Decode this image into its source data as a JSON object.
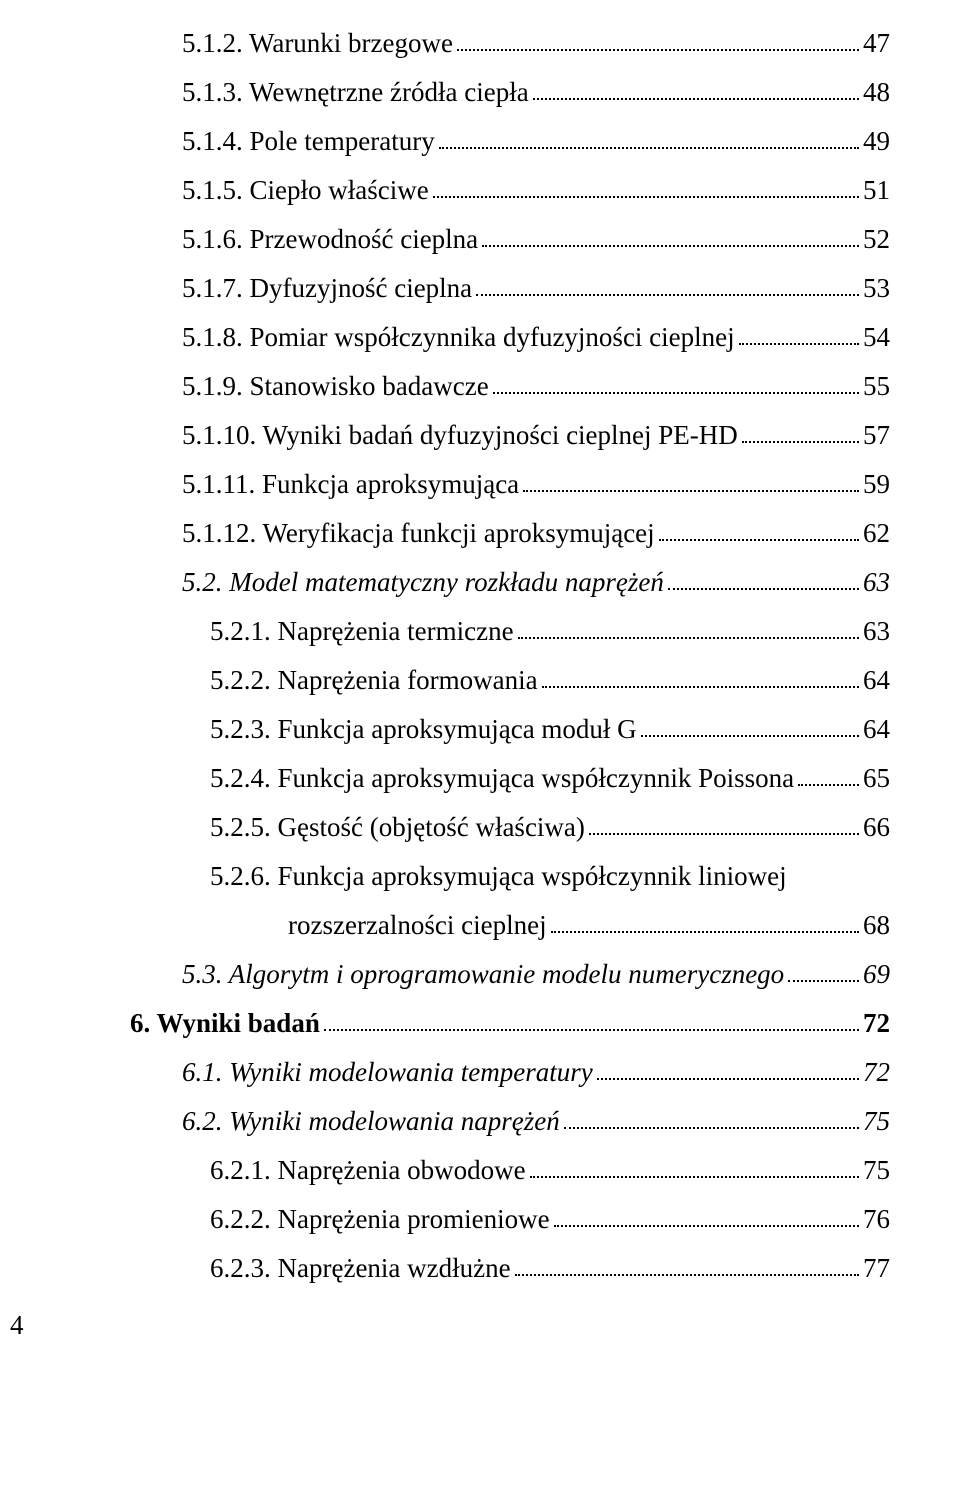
{
  "toc": {
    "entries": [
      {
        "indent": 1,
        "label": "5.1.2. Warunki brzegowe",
        "page": "47",
        "style": ""
      },
      {
        "indent": 1,
        "label": "5.1.3. Wewnętrzne źródła ciepła",
        "page": "48",
        "style": ""
      },
      {
        "indent": 1,
        "label": "5.1.4. Pole temperatury",
        "page": "49",
        "style": ""
      },
      {
        "indent": 1,
        "label": "5.1.5. Ciepło właściwe",
        "page": "51",
        "style": ""
      },
      {
        "indent": 1,
        "label": "5.1.6. Przewodność cieplna",
        "page": "52",
        "style": ""
      },
      {
        "indent": 1,
        "label": "5.1.7. Dyfuzyjność cieplna",
        "page": "53",
        "style": ""
      },
      {
        "indent": 1,
        "label": "5.1.8. Pomiar współczynnika dyfuzyjności cieplnej",
        "page": "54",
        "style": ""
      },
      {
        "indent": 1,
        "label": "5.1.9. Stanowisko badawcze",
        "page": "55",
        "style": ""
      },
      {
        "indent": 1,
        "label": "5.1.10. Wyniki badań dyfuzyjności cieplnej PE-HD",
        "page": "57",
        "style": ""
      },
      {
        "indent": 1,
        "label": "5.1.11. Funkcja aproksymująca",
        "page": "59",
        "style": ""
      },
      {
        "indent": 1,
        "label": "5.1.12. Weryfikacja funkcji aproksymującej",
        "page": "62",
        "style": ""
      },
      {
        "indent": 1,
        "label": "5.2. Model matematyczny rozkładu naprężeń",
        "page": "63",
        "style": "italic"
      },
      {
        "indent": 2,
        "label": "5.2.1. Naprężenia termiczne",
        "page": "63",
        "style": ""
      },
      {
        "indent": 2,
        "label": "5.2.2. Naprężenia formowania",
        "page": "64",
        "style": ""
      },
      {
        "indent": 2,
        "label": "5.2.3. Funkcja aproksymująca moduł G",
        "page": "64",
        "style": ""
      },
      {
        "indent": 2,
        "label": "5.2.4. Funkcja aproksymująca współczynnik Poissona",
        "page": "65",
        "style": ""
      },
      {
        "indent": 2,
        "label": "5.2.5. Gęstość (objętość właściwa)",
        "page": "66",
        "style": ""
      },
      {
        "indent": 2,
        "label_line1": "5.2.6. Funkcja aproksymująca współczynnik liniowej",
        "label_line2": "rozszerzalności cieplnej",
        "page": "68",
        "style": "",
        "multiline": true
      },
      {
        "indent": 1,
        "label": "5.3. Algorytm i oprogramowanie modelu numerycznego",
        "page": "69",
        "style": "italic"
      },
      {
        "indent": 0,
        "label": "6. Wyniki badań",
        "page": "72",
        "style": "bold"
      },
      {
        "indent": 1,
        "label": "6.1. Wyniki modelowania temperatury",
        "page": "72",
        "style": "italic"
      },
      {
        "indent": 1,
        "label": "6.2. Wyniki modelowania naprężeń",
        "page": "75",
        "style": "italic"
      },
      {
        "indent": 2,
        "label": "6.2.1. Naprężenia obwodowe",
        "page": "75",
        "style": ""
      },
      {
        "indent": 2,
        "label": "6.2.2. Naprężenia promieniowe",
        "page": "76",
        "style": ""
      },
      {
        "indent": 2,
        "label": "6.2.3. Naprężenia wzdłużne",
        "page": "77",
        "style": ""
      }
    ]
  },
  "footer_page": "4"
}
